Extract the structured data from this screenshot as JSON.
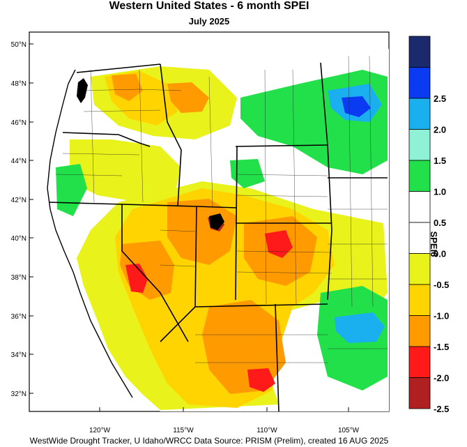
{
  "title": "Western United States - 6 month SPEI",
  "subtitle": "July 2025",
  "credit": "WestWide Drought Tracker, U Idaho/WRCC Data Source: PRISM (Prelim), created 16 AUG 2025",
  "map": {
    "lat_labels": [
      "50°N",
      "48°N",
      "46°N",
      "44°N",
      "42°N",
      "40°N",
      "38°N",
      "36°N",
      "34°N",
      "32°N"
    ],
    "lon_labels": [
      "120°W",
      "115°W",
      "110°W",
      "105°W"
    ]
  },
  "colorbar": {
    "title": "SPEI6",
    "classes": [
      {
        "color": "#1a2a6c"
      },
      {
        "color": "#0a3bf2",
        "label": "2.5"
      },
      {
        "color": "#1ab0f0",
        "label": "2.0"
      },
      {
        "color": "#8ff2d6",
        "label": "1.5"
      },
      {
        "color": "#22e04a",
        "label": "1.0"
      },
      {
        "color": "#ffffff",
        "label": "0.5"
      },
      {
        "color": "#ffffff",
        "label": "0.0"
      },
      {
        "color": "#e9f21a",
        "label": "-0.5"
      },
      {
        "color": "#ffd400",
        "label": "-1.0"
      },
      {
        "color": "#ff9a00",
        "label": "-1.5"
      },
      {
        "color": "#ff1a1a",
        "label": "-2.0"
      },
      {
        "color": "#b02020",
        "label": "-2.5"
      }
    ]
  },
  "colors": {
    "drought_mild": "#e9f21a",
    "drought_moderate": "#ffd400",
    "drought_severe": "#ff9a00",
    "drought_extreme": "#ff1a1a",
    "wet_moderate": "#22e04a",
    "wet_severe": "#1ab0f0",
    "wet_extreme": "#0a3bf2"
  }
}
